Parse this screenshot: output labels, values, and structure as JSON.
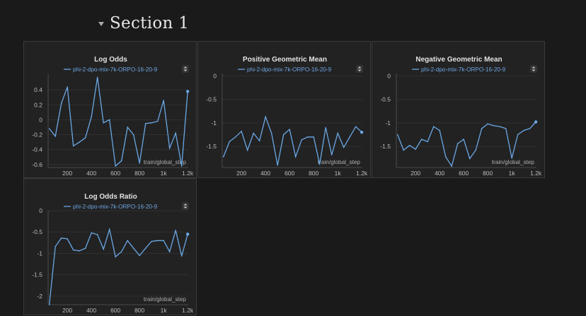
{
  "section": {
    "title": "Section 1"
  },
  "colors": {
    "background": "#1a1a1b",
    "panel": "#222223",
    "series": "#6aa8e4"
  },
  "icons": {
    "collapse": "caret-down-icon",
    "legend_menu": "sort-arrows-icon"
  },
  "chart_data": [
    {
      "type": "line",
      "title": "Log Odds",
      "series": [
        {
          "name": "phi-2-dpo-mix-7k-ORPO-16-20-9",
          "x": [
            50,
            100,
            150,
            200,
            250,
            300,
            350,
            400,
            450,
            500,
            550,
            600,
            650,
            700,
            750,
            800,
            850,
            900,
            950,
            1000,
            1050,
            1100,
            1150,
            1200
          ],
          "y": [
            -0.12,
            -0.22,
            0.22,
            0.44,
            -0.35,
            -0.3,
            -0.24,
            0.04,
            0.57,
            -0.04,
            0.0,
            -0.62,
            -0.55,
            -0.1,
            -0.2,
            -0.58,
            -0.05,
            -0.04,
            -0.02,
            0.26,
            -0.38,
            -0.18,
            -0.62,
            0.38
          ]
        }
      ],
      "xlabel": "train/global_step",
      "xticks": [
        "200",
        "400",
        "600",
        "800",
        "1k",
        "1.2k"
      ],
      "yticks": [
        "0.4",
        "0.2",
        "0",
        "-0.2",
        "-0.4",
        "-0.6"
      ],
      "xlim": [
        40,
        1205
      ],
      "ylim": [
        -0.64,
        0.62
      ],
      "grid": true
    },
    {
      "type": "line",
      "title": "Positive Geometric Mean",
      "series": [
        {
          "name": "phi-2-dpo-mix-7k-ORPO-16-20-9",
          "x": [
            50,
            100,
            150,
            200,
            250,
            300,
            350,
            400,
            450,
            500,
            550,
            600,
            650,
            700,
            750,
            800,
            850,
            900,
            950,
            1000,
            1050,
            1100,
            1150,
            1200
          ],
          "y": [
            -1.72,
            -1.4,
            -1.3,
            -1.18,
            -1.58,
            -1.22,
            -1.38,
            -0.87,
            -1.22,
            -1.9,
            -1.25,
            -1.14,
            -1.72,
            -1.36,
            -1.3,
            -1.3,
            -1.88,
            -1.1,
            -1.68,
            -1.22,
            -1.52,
            -1.3,
            -1.08,
            -1.2
          ]
        }
      ],
      "xlabel": "train/global_step",
      "xticks": [
        "200",
        "400",
        "600",
        "800",
        "1k",
        "1.2k"
      ],
      "yticks": [
        "0",
        "-0.5",
        "-1",
        "-1.5"
      ],
      "xlim": [
        40,
        1205
      ],
      "ylim": [
        -1.95,
        0.05
      ],
      "grid": true
    },
    {
      "type": "line",
      "title": "Negative Geometric Mean",
      "series": [
        {
          "name": "phi-2-dpo-mix-7k-ORPO-16-20-9",
          "x": [
            50,
            100,
            150,
            200,
            250,
            300,
            350,
            400,
            450,
            500,
            550,
            600,
            650,
            700,
            750,
            800,
            850,
            900,
            950,
            1000,
            1050,
            1100,
            1150,
            1200
          ],
          "y": [
            -1.25,
            -1.58,
            -1.48,
            -1.56,
            -1.35,
            -1.4,
            -1.08,
            -1.16,
            -1.72,
            -1.92,
            -1.44,
            -1.35,
            -1.76,
            -1.58,
            -1.12,
            -1.02,
            -1.06,
            -1.08,
            -1.12,
            -1.75,
            -1.25,
            -1.16,
            -1.12,
            -0.98
          ]
        }
      ],
      "xlabel": "train/global_step",
      "xticks": [
        "200",
        "400",
        "600",
        "800",
        "1k",
        "1.2k"
      ],
      "yticks": [
        "0",
        "-0.5",
        "-1",
        "-1.5"
      ],
      "xlim": [
        40,
        1205
      ],
      "ylim": [
        -1.95,
        0.05
      ],
      "grid": true
    },
    {
      "type": "line",
      "title": "Log Odds Ratio",
      "series": [
        {
          "name": "phi-2-dpo-mix-7k-ORPO-16-20-9",
          "x": [
            50,
            100,
            150,
            200,
            250,
            300,
            350,
            400,
            450,
            500,
            550,
            600,
            650,
            700,
            750,
            800,
            850,
            900,
            950,
            1000,
            1050,
            1100,
            1150,
            1200
          ],
          "y": [
            -2.2,
            -0.84,
            -0.64,
            -0.66,
            -0.92,
            -0.94,
            -0.88,
            -0.52,
            -0.56,
            -0.9,
            -0.44,
            -1.08,
            -0.96,
            -0.7,
            -0.88,
            -1.05,
            -0.88,
            -0.72,
            -0.7,
            -0.7,
            -0.96,
            -0.46,
            -1.06,
            -0.55
          ]
        }
      ],
      "xlabel": "train/global_step",
      "xticks": [
        "200",
        "400",
        "600",
        "800",
        "1k",
        "1.2k"
      ],
      "yticks": [
        "0",
        "-0.5",
        "-1",
        "-1.5",
        "-2"
      ],
      "xlim": [
        40,
        1205
      ],
      "ylim": [
        -2.2,
        0.0
      ],
      "grid": true
    }
  ]
}
